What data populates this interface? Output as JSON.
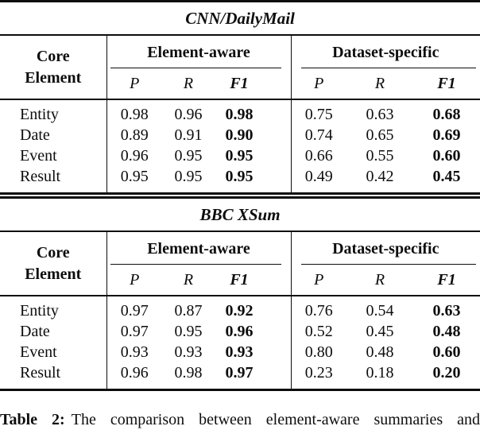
{
  "colors": {
    "background": "#ffffff",
    "ink": "#0d0d0d"
  },
  "tables": [
    {
      "title": "CNN/DailyMail",
      "corner_line1": "Core",
      "corner_line2": "Element",
      "group1": "Element-aware",
      "group2": "Dataset-specific",
      "sub_p": "P",
      "sub_r": "R",
      "sub_f1": "F1",
      "rows": [
        {
          "label": "Entity",
          "ea_p": "0.98",
          "ea_r": "0.96",
          "ea_f1": "0.98",
          "ds_p": "0.75",
          "ds_r": "0.63",
          "ds_f1": "0.68"
        },
        {
          "label": "Date",
          "ea_p": "0.89",
          "ea_r": "0.91",
          "ea_f1": "0.90",
          "ds_p": "0.74",
          "ds_r": "0.65",
          "ds_f1": "0.69"
        },
        {
          "label": "Event",
          "ea_p": "0.96",
          "ea_r": "0.95",
          "ea_f1": "0.95",
          "ds_p": "0.66",
          "ds_r": "0.55",
          "ds_f1": "0.60"
        },
        {
          "label": "Result",
          "ea_p": "0.95",
          "ea_r": "0.95",
          "ea_f1": "0.95",
          "ds_p": "0.49",
          "ds_r": "0.42",
          "ds_f1": "0.45"
        }
      ]
    },
    {
      "title": "BBC XSum",
      "corner_line1": "Core",
      "corner_line2": "Element",
      "group1": "Element-aware",
      "group2": "Dataset-specific",
      "sub_p": "P",
      "sub_r": "R",
      "sub_f1": "F1",
      "rows": [
        {
          "label": "Entity",
          "ea_p": "0.97",
          "ea_r": "0.87",
          "ea_f1": "0.92",
          "ds_p": "0.76",
          "ds_r": "0.54",
          "ds_f1": "0.63"
        },
        {
          "label": "Date",
          "ea_p": "0.97",
          "ea_r": "0.95",
          "ea_f1": "0.96",
          "ds_p": "0.52",
          "ds_r": "0.45",
          "ds_f1": "0.48"
        },
        {
          "label": "Event",
          "ea_p": "0.93",
          "ea_r": "0.93",
          "ea_f1": "0.93",
          "ds_p": "0.80",
          "ds_r": "0.48",
          "ds_f1": "0.60"
        },
        {
          "label": "Result",
          "ea_p": "0.96",
          "ea_r": "0.98",
          "ea_f1": "0.97",
          "ds_p": "0.23",
          "ds_r": "0.18",
          "ds_f1": "0.20"
        }
      ]
    }
  ],
  "caption": {
    "prefix": "Table 2:",
    "text": "The comparison between element-aware summaries and"
  },
  "chart_data": {
    "type": "table",
    "sections": [
      {
        "title": "CNN/DailyMail",
        "columns": [
          "Core Element",
          "Element-aware P",
          "Element-aware R",
          "Element-aware F1",
          "Dataset-specific P",
          "Dataset-specific R",
          "Dataset-specific F1"
        ],
        "rows": [
          [
            "Entity",
            0.98,
            0.96,
            0.98,
            0.75,
            0.63,
            0.68
          ],
          [
            "Date",
            0.89,
            0.91,
            0.9,
            0.74,
            0.65,
            0.69
          ],
          [
            "Event",
            0.96,
            0.95,
            0.95,
            0.66,
            0.55,
            0.6
          ],
          [
            "Result",
            0.95,
            0.95,
            0.95,
            0.49,
            0.42,
            0.45
          ]
        ]
      },
      {
        "title": "BBC XSum",
        "columns": [
          "Core Element",
          "Element-aware P",
          "Element-aware R",
          "Element-aware F1",
          "Dataset-specific P",
          "Dataset-specific R",
          "Dataset-specific F1"
        ],
        "rows": [
          [
            "Entity",
            0.97,
            0.87,
            0.92,
            0.76,
            0.54,
            0.63
          ],
          [
            "Date",
            0.97,
            0.95,
            0.96,
            0.52,
            0.45,
            0.48
          ],
          [
            "Event",
            0.93,
            0.93,
            0.93,
            0.8,
            0.48,
            0.6
          ],
          [
            "Result",
            0.96,
            0.98,
            0.97,
            0.23,
            0.18,
            0.2
          ]
        ]
      }
    ]
  }
}
